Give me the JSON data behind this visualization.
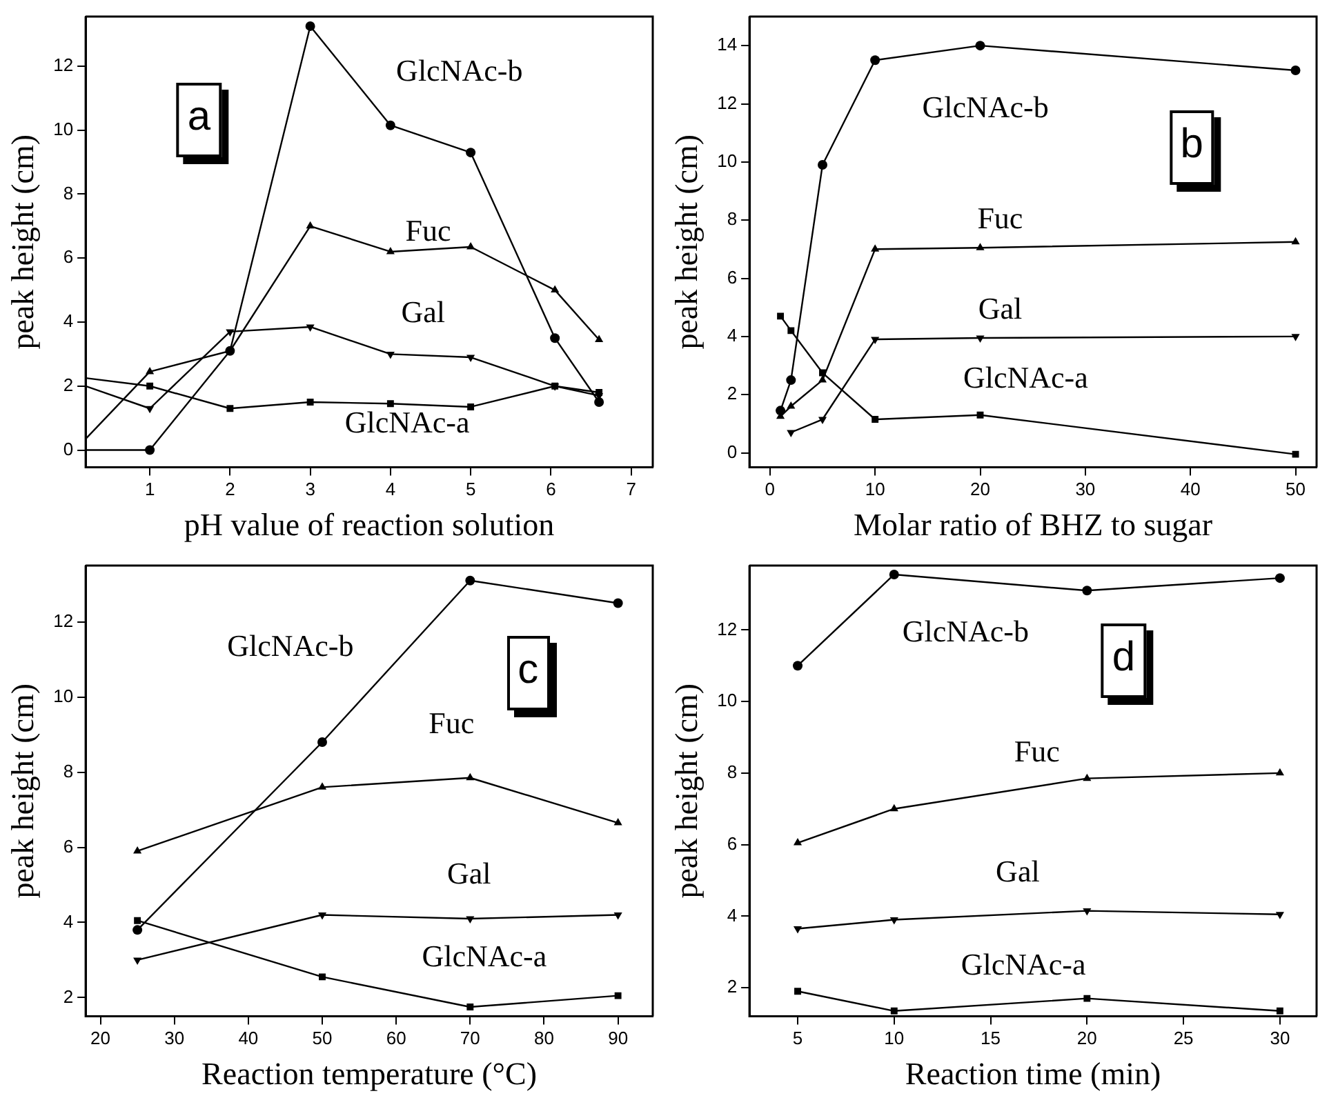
{
  "chart_data": [
    {
      "type": "line",
      "xlabel": "pH value of reaction solution",
      "ylabel": "peak height (cm)",
      "grid": false,
      "legend": false,
      "x": [
        0.2,
        1,
        2,
        3,
        4,
        5,
        6.05,
        6.6
      ],
      "xlim": [
        0.2,
        7.27
      ],
      "ylim": [
        -0.54,
        13.55
      ],
      "xticks": [
        1,
        2,
        3,
        4,
        5,
        6,
        7
      ],
      "yticks": [
        0,
        2,
        4,
        6,
        8,
        10,
        12
      ],
      "series": [
        {
          "name": "GlcNAc-b",
          "color": "#000000",
          "marker": "circle",
          "values": [
            0,
            0,
            3.1,
            13.25,
            10.15,
            9.3,
            3.5,
            1.5
          ]
        },
        {
          "name": "Fuc",
          "color": "#000000",
          "marker": "triangle",
          "values": [
            0.35,
            2.45,
            3.1,
            7.0,
            6.2,
            6.35,
            5.0,
            3.45
          ]
        },
        {
          "name": "Gal",
          "color": "#000000",
          "marker": "triangle-down",
          "values": [
            2.0,
            1.3,
            3.7,
            3.85,
            3.0,
            2.9,
            2.0,
            1.7
          ]
        },
        {
          "name": "GlcNAc-a",
          "color": "#000000",
          "marker": "square",
          "values": [
            2.25,
            2.0,
            1.3,
            1.5,
            1.45,
            1.35,
            2.0,
            1.8
          ]
        }
      ],
      "annotations": [
        "a"
      ]
    },
    {
      "type": "line",
      "xlabel": "Molar ratio of BHZ to sugar",
      "ylabel": "peak height (cm)",
      "grid": false,
      "legend": false,
      "xlim": [
        -1.95,
        52
      ],
      "ylim": [
        -0.5,
        15
      ],
      "xticks": [
        0,
        10,
        20,
        30,
        40,
        50
      ],
      "yticks": [
        0,
        2,
        4,
        6,
        8,
        10,
        12,
        14
      ],
      "series": [
        {
          "name": "GlcNAc-b",
          "color": "#000000",
          "marker": "circle",
          "x": [
            1,
            2,
            5,
            10,
            20,
            50
          ],
          "values": [
            1.45,
            2.5,
            9.9,
            13.5,
            14.0,
            13.15
          ]
        },
        {
          "name": "Fuc",
          "color": "#000000",
          "marker": "triangle",
          "x": [
            1,
            2,
            5,
            10,
            20,
            50
          ],
          "values": [
            1.25,
            1.6,
            2.5,
            7.0,
            7.05,
            7.25
          ]
        },
        {
          "name": "Gal",
          "color": "#000000",
          "marker": "triangle-down",
          "x": [
            2,
            5,
            10,
            20,
            50
          ],
          "values": [
            0.7,
            1.15,
            3.9,
            3.95,
            4.0
          ]
        },
        {
          "name": "GlcNAc-a",
          "color": "#000000",
          "marker": "square",
          "x": [
            1,
            2,
            5,
            10,
            20,
            50
          ],
          "values": [
            4.7,
            4.2,
            2.75,
            1.15,
            1.3,
            -0.05
          ]
        }
      ],
      "annotations": [
        "b"
      ]
    },
    {
      "type": "line",
      "xlabel": "Reaction temperature (°C)",
      "ylabel": "peak height (cm)",
      "grid": false,
      "legend": false,
      "x": [
        25,
        50,
        70,
        90
      ],
      "xlim": [
        18,
        94.7
      ],
      "ylim": [
        1.5,
        13.5
      ],
      "xticks": [
        20,
        30,
        40,
        50,
        60,
        70,
        80,
        90
      ],
      "yticks": [
        2,
        4,
        6,
        8,
        10,
        12
      ],
      "series": [
        {
          "name": "GlcNAc-b",
          "color": "#000000",
          "marker": "circle",
          "values": [
            3.8,
            8.8,
            13.1,
            12.5
          ]
        },
        {
          "name": "Fuc",
          "color": "#000000",
          "marker": "triangle",
          "values": [
            5.9,
            7.6,
            7.85,
            6.65
          ]
        },
        {
          "name": "Gal",
          "color": "#000000",
          "marker": "triangle-down",
          "values": [
            3.0,
            4.2,
            4.1,
            4.2
          ]
        },
        {
          "name": "GlcNAc-a",
          "color": "#000000",
          "marker": "square",
          "values": [
            4.05,
            2.55,
            1.75,
            2.05
          ]
        }
      ],
      "annotations": [
        "c"
      ]
    },
    {
      "type": "line",
      "xlabel": "Reaction time (min)",
      "ylabel": "peak height (cm)",
      "grid": false,
      "legend": false,
      "x": [
        5,
        10,
        20,
        30
      ],
      "xlim": [
        2.5,
        31.9
      ],
      "ylim": [
        1.2,
        13.8
      ],
      "xticks": [
        5,
        10,
        15,
        20,
        25,
        30
      ],
      "yticks": [
        2,
        4,
        6,
        8,
        10,
        12
      ],
      "series": [
        {
          "name": "GlcNAc-b",
          "color": "#000000",
          "marker": "circle",
          "values": [
            11.0,
            13.55,
            13.1,
            13.45
          ]
        },
        {
          "name": "Fuc",
          "color": "#000000",
          "marker": "triangle",
          "values": [
            6.05,
            7.0,
            7.85,
            8.0
          ]
        },
        {
          "name": "Gal",
          "color": "#000000",
          "marker": "triangle-down",
          "values": [
            3.65,
            3.9,
            4.15,
            4.05
          ]
        },
        {
          "name": "GlcNAc-a",
          "color": "#000000",
          "marker": "square",
          "values": [
            1.9,
            1.35,
            1.7,
            1.35
          ]
        }
      ],
      "annotations": [
        "d"
      ]
    }
  ]
}
